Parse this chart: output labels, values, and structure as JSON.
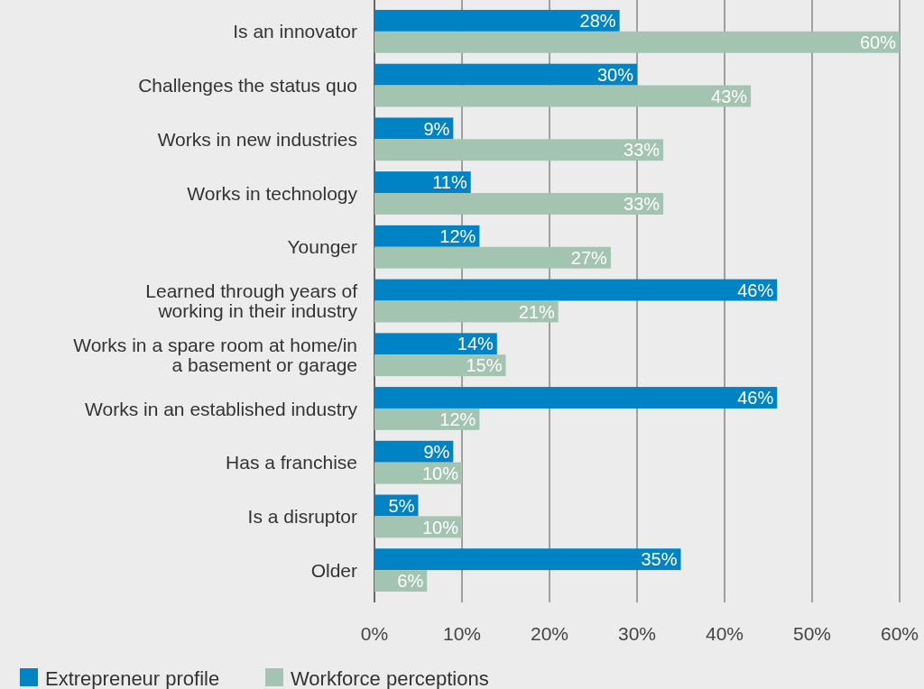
{
  "chart_data": {
    "type": "bar",
    "orientation": "horizontal",
    "categories": [
      "Is an innovator",
      "Challenges the status quo",
      "Works in new industries",
      "Works in technology",
      "Younger",
      "Learned through years of\nworking in their industry",
      "Works in a spare room at home/in\na basement or garage",
      "Works in an established industry",
      "Has a franchise",
      "Is a disruptor",
      "Older"
    ],
    "series": [
      {
        "name": "Extrepreneur profile",
        "color": "#0083c4",
        "values": [
          28,
          30,
          9,
          11,
          12,
          46,
          14,
          46,
          9,
          5,
          35
        ],
        "value_labels": [
          "28%",
          "30%",
          "9%",
          "11%",
          "12%",
          "46%",
          "14%",
          "46%",
          "9%",
          "5%",
          "35%"
        ]
      },
      {
        "name": "Workforce perceptions",
        "color": "#a3c4b0",
        "values": [
          60,
          43,
          33,
          33,
          27,
          21,
          15,
          12,
          10,
          10,
          6
        ],
        "value_labels": [
          "60%",
          "43%",
          "33%",
          "33%",
          "27%",
          "21%",
          "15%",
          "12%",
          "10%",
          "10%",
          "6%"
        ]
      }
    ],
    "xlim": [
      0,
      60
    ],
    "xticks": [
      {
        "value": 0,
        "label": "0%"
      },
      {
        "value": 10,
        "label": "10%"
      },
      {
        "value": 20,
        "label": "20%"
      },
      {
        "value": 30,
        "label": "30%"
      },
      {
        "value": 40,
        "label": "40%"
      },
      {
        "value": 50,
        "label": "50%"
      },
      {
        "value": 60,
        "label": "60%"
      }
    ],
    "grid": "x",
    "legend": "bottom"
  }
}
